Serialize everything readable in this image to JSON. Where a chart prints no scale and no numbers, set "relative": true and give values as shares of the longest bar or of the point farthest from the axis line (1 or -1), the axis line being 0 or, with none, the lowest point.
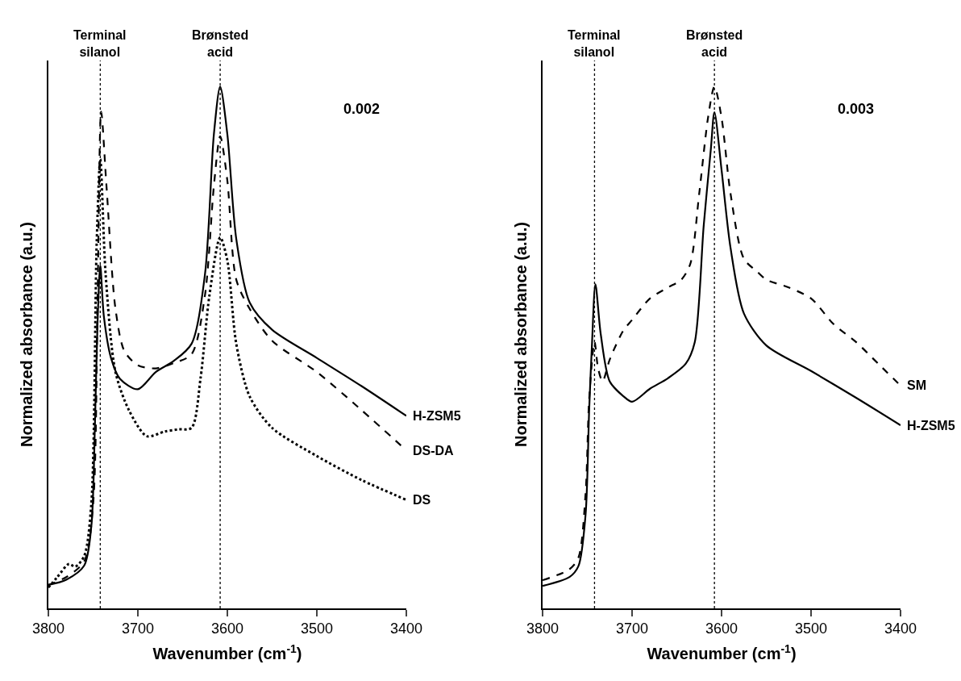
{
  "chart_data": [
    {
      "type": "line",
      "relative": true,
      "xlabel": "Wavenumber (cm$^{-1}$)",
      "ylabel": "Normalized absorbance (a.u.)",
      "xlim": [
        3800,
        3400
      ],
      "xticks": [
        3800,
        3700,
        3600,
        3500,
        3400
      ],
      "tick_labels": "x",
      "annotations": [
        "0.002"
      ],
      "ref_lines": [
        {
          "axis": "x",
          "value": 3742,
          "label": "Terminal\nsilanol",
          "line_style": "dotted",
          "color": "#000000"
        },
        {
          "axis": "x",
          "value": 3608,
          "label": "Brønsted\nacid",
          "line_style": "dotted",
          "color": "#000000"
        }
      ],
      "series": [
        {
          "name": "H-ZSM5",
          "color": "#000000",
          "line_style": "solid",
          "x": [
            3800,
            3780,
            3760,
            3752,
            3748,
            3745,
            3742,
            3738,
            3730,
            3720,
            3700,
            3680,
            3660,
            3640,
            3625,
            3615,
            3608,
            3600,
            3590,
            3575,
            3550,
            3500,
            3450,
            3400
          ],
          "values": [
            0.045,
            0.055,
            0.082,
            0.157,
            0.35,
            0.55,
            0.657,
            0.56,
            0.48,
            0.44,
            0.42,
            0.453,
            0.474,
            0.507,
            0.64,
            0.909,
            1.0,
            0.909,
            0.708,
            0.586,
            0.534,
            0.48,
            0.426,
            0.369
          ]
        },
        {
          "name": "DS-DA",
          "color": "#000000",
          "line_style": "dashed",
          "x": [
            3800,
            3780,
            3760,
            3750,
            3745,
            3741,
            3735,
            3725,
            3715,
            3700,
            3680,
            3660,
            3640,
            3625,
            3615,
            3608,
            3600,
            3590,
            3575,
            3550,
            3500,
            3450,
            3400
          ],
          "values": [
            0.045,
            0.06,
            0.09,
            0.2,
            0.6,
            0.952,
            0.808,
            0.574,
            0.493,
            0.466,
            0.46,
            0.47,
            0.487,
            0.6,
            0.81,
            0.905,
            0.82,
            0.63,
            0.574,
            0.513,
            0.453,
            0.38,
            0.303
          ]
        },
        {
          "name": "DS",
          "color": "#000000",
          "line_style": "dotted",
          "x": [
            3800,
            3790,
            3777,
            3770,
            3760,
            3752,
            3746,
            3742,
            3736,
            3725,
            3710,
            3690,
            3670,
            3655,
            3640,
            3630,
            3620,
            3608,
            3600,
            3590,
            3575,
            3550,
            3500,
            3450,
            3400
          ],
          "values": [
            0.04,
            0.06,
            0.085,
            0.08,
            0.1,
            0.2,
            0.7,
            0.861,
            0.64,
            0.453,
            0.38,
            0.33,
            0.339,
            0.343,
            0.346,
            0.44,
            0.6,
            0.711,
            0.667,
            0.507,
            0.406,
            0.346,
            0.292,
            0.246,
            0.208
          ]
        }
      ]
    },
    {
      "type": "line",
      "relative": true,
      "xlabel": "Wavenumber (cm$^{-1}$)",
      "ylabel": "Normalized absorbance (a.u.)",
      "xlim": [
        3800,
        3400
      ],
      "xticks": [
        3800,
        3700,
        3600,
        3500,
        3400
      ],
      "tick_labels": "x",
      "annotations": [
        "0.003"
      ],
      "ref_lines": [
        {
          "axis": "x",
          "value": 3742,
          "label": "Terminal\nsilanol",
          "line_style": "dotted",
          "color": "#000000"
        },
        {
          "axis": "x",
          "value": 3608,
          "label": "Brønsted\nacid",
          "line_style": "dotted",
          "color": "#000000"
        }
      ],
      "series": [
        {
          "name": "SM",
          "color": "#000000",
          "line_style": "dashed",
          "x": [
            3800,
            3770,
            3760,
            3752,
            3748,
            3742,
            3738,
            3733,
            3725,
            3710,
            3700,
            3680,
            3660,
            3645,
            3635,
            3625,
            3615,
            3608,
            3600,
            3590,
            3575,
            3560,
            3550,
            3525,
            3500,
            3475,
            3450,
            3425,
            3400
          ],
          "values": [
            0.054,
            0.075,
            0.097,
            0.22,
            0.4,
            0.511,
            0.46,
            0.435,
            0.477,
            0.532,
            0.553,
            0.594,
            0.615,
            0.63,
            0.66,
            0.795,
            0.942,
            1.0,
            0.94,
            0.795,
            0.67,
            0.645,
            0.63,
            0.615,
            0.594,
            0.545,
            0.511,
            0.469,
            0.427
          ]
        },
        {
          "name": "H-ZSM5",
          "color": "#000000",
          "line_style": "solid",
          "x": [
            3800,
            3770,
            3760,
            3752,
            3748,
            3745,
            3741,
            3735,
            3725,
            3710,
            3700,
            3680,
            3660,
            3640,
            3630,
            3620,
            3612,
            3608,
            3600,
            3590,
            3575,
            3550,
            3500,
            3450,
            3400
          ],
          "values": [
            0.043,
            0.06,
            0.081,
            0.18,
            0.38,
            0.5,
            0.621,
            0.525,
            0.435,
            0.407,
            0.396,
            0.421,
            0.441,
            0.469,
            0.51,
            0.733,
            0.88,
            0.951,
            0.84,
            0.691,
            0.565,
            0.504,
            0.455,
            0.404,
            0.351
          ]
        }
      ]
    }
  ]
}
